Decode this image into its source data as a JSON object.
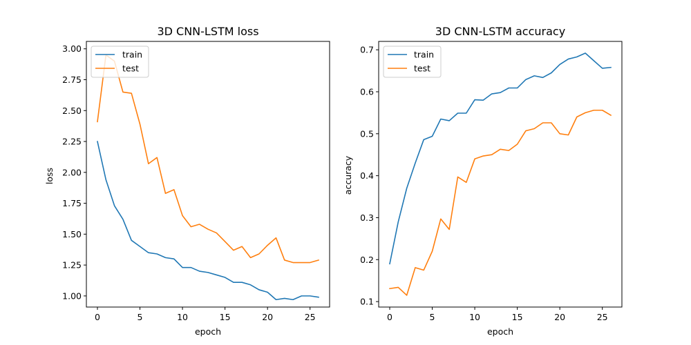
{
  "chart_data": [
    {
      "type": "line",
      "title": "3D CNN-LSTM loss",
      "xlabel": "epoch",
      "ylabel": "loss",
      "xlim": [
        -1.3,
        27.3
      ],
      "ylim": [
        0.91,
        3.06
      ],
      "xticks": [
        0,
        5,
        10,
        15,
        20,
        25
      ],
      "xtick_labels": [
        "0",
        "5",
        "10",
        "15",
        "20",
        "25"
      ],
      "yticks": [
        1.0,
        1.25,
        1.5,
        1.75,
        2.0,
        2.25,
        2.5,
        2.75,
        3.0
      ],
      "ytick_labels": [
        "1.00",
        "1.25",
        "1.50",
        "1.75",
        "2.00",
        "2.25",
        "2.50",
        "2.75",
        "3.00"
      ],
      "legend": "upper left",
      "grid": false,
      "x": [
        0,
        1,
        2,
        3,
        4,
        5,
        6,
        7,
        8,
        9,
        10,
        11,
        12,
        13,
        14,
        15,
        16,
        17,
        18,
        19,
        20,
        21,
        22,
        23,
        24,
        25,
        26
      ],
      "series": [
        {
          "name": "train",
          "color": "#1f77b4",
          "values": [
            2.25,
            1.94,
            1.73,
            1.62,
            1.45,
            1.4,
            1.35,
            1.34,
            1.31,
            1.3,
            1.23,
            1.23,
            1.2,
            1.19,
            1.17,
            1.15,
            1.11,
            1.11,
            1.09,
            1.05,
            1.03,
            0.97,
            0.98,
            0.97,
            1.0,
            1.0,
            0.99
          ]
        },
        {
          "name": "test",
          "color": "#ff7f0e",
          "values": [
            2.41,
            2.95,
            2.9,
            2.65,
            2.64,
            2.39,
            2.07,
            2.12,
            1.83,
            1.86,
            1.65,
            1.56,
            1.58,
            1.54,
            1.51,
            1.44,
            1.37,
            1.4,
            1.31,
            1.34,
            1.41,
            1.47,
            1.29,
            1.27,
            1.27,
            1.27,
            1.29
          ]
        }
      ]
    },
    {
      "type": "line",
      "title": "3D CNN-LSTM accuracy",
      "xlabel": "epoch",
      "ylabel": "accuracy",
      "xlim": [
        -1.3,
        27.3
      ],
      "ylim": [
        0.087,
        0.72
      ],
      "xticks": [
        0,
        5,
        10,
        15,
        20,
        25
      ],
      "xtick_labels": [
        "0",
        "5",
        "10",
        "15",
        "20",
        "25"
      ],
      "yticks": [
        0.1,
        0.2,
        0.3,
        0.4,
        0.5,
        0.6,
        0.7
      ],
      "ytick_labels": [
        "0.1",
        "0.2",
        "0.3",
        "0.4",
        "0.5",
        "0.6",
        "0.7"
      ],
      "legend": "upper left",
      "grid": false,
      "x": [
        0,
        1,
        2,
        3,
        4,
        5,
        6,
        7,
        8,
        9,
        10,
        11,
        12,
        13,
        14,
        15,
        16,
        17,
        18,
        19,
        20,
        21,
        22,
        23,
        24,
        25,
        26
      ],
      "series": [
        {
          "name": "train",
          "color": "#1f77b4",
          "values": [
            0.19,
            0.29,
            0.37,
            0.43,
            0.486,
            0.494,
            0.535,
            0.531,
            0.549,
            0.549,
            0.581,
            0.58,
            0.595,
            0.598,
            0.609,
            0.609,
            0.629,
            0.638,
            0.634,
            0.645,
            0.665,
            0.678,
            0.683,
            0.692,
            0.674,
            0.656,
            0.658
          ]
        },
        {
          "name": "test",
          "color": "#ff7f0e",
          "values": [
            0.131,
            0.134,
            0.115,
            0.181,
            0.175,
            0.22,
            0.297,
            0.272,
            0.397,
            0.384,
            0.44,
            0.447,
            0.45,
            0.463,
            0.46,
            0.475,
            0.507,
            0.512,
            0.526,
            0.526,
            0.5,
            0.497,
            0.54,
            0.55,
            0.556,
            0.556,
            0.544
          ]
        }
      ]
    }
  ]
}
